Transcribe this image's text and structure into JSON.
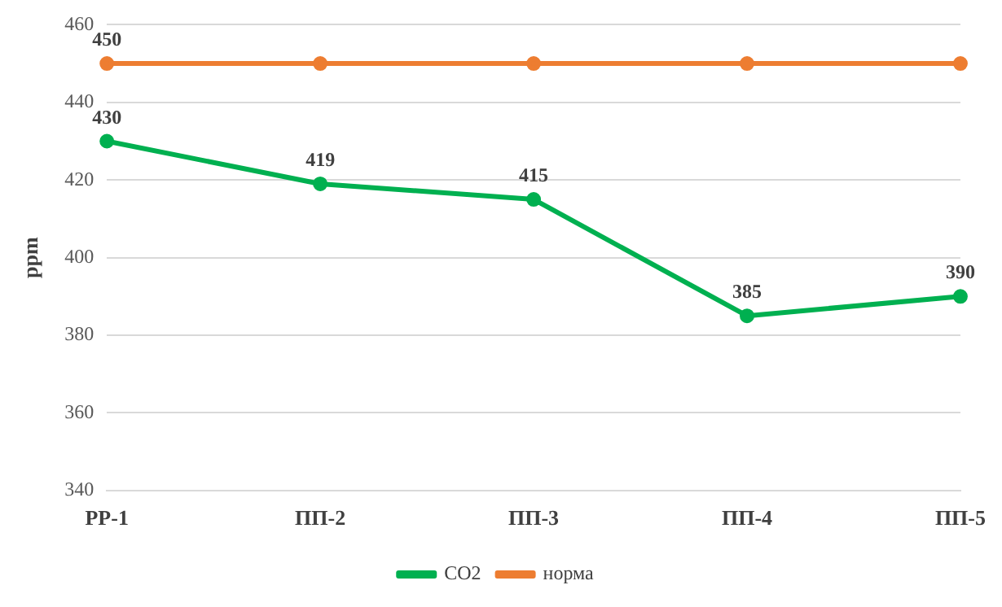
{
  "chart_data": {
    "type": "line",
    "ylabel": "ppm",
    "categories": [
      "РР-1",
      "ПП-2",
      "ПП-3",
      "ПП-4",
      "ПП-5"
    ],
    "series": [
      {
        "name": "CO2",
        "color": "#00b050",
        "values": [
          430,
          419,
          415,
          385,
          390
        ],
        "value_labels": [
          "430",
          "419",
          "415",
          "385",
          "390"
        ]
      },
      {
        "name": "норма",
        "color": "#ed7d31",
        "values": [
          450,
          450,
          450,
          450,
          450
        ],
        "value_labels": [
          "450",
          null,
          null,
          null,
          null
        ]
      }
    ],
    "ylim": [
      340,
      460
    ],
    "yticks": [
      340,
      360,
      380,
      400,
      420,
      440,
      460
    ],
    "grid": "y",
    "legend": "bottom",
    "marker": "circle"
  }
}
